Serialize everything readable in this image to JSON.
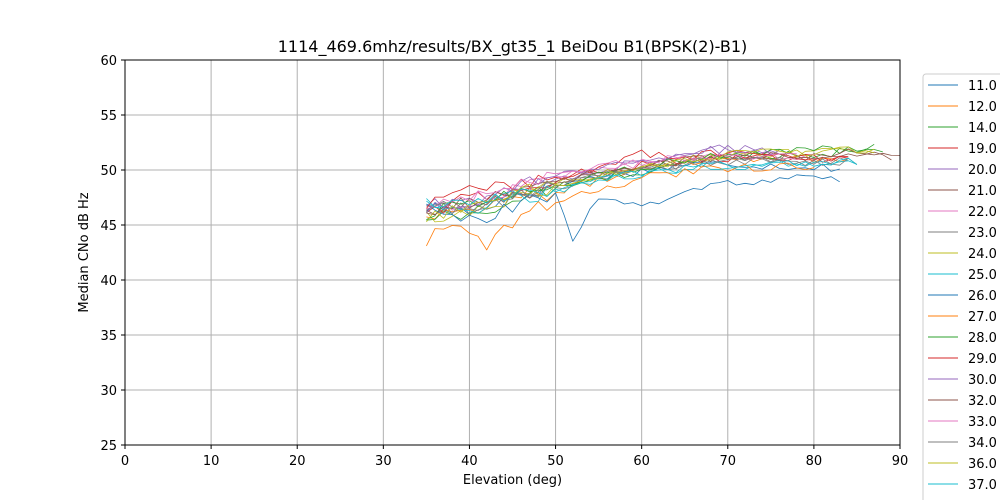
{
  "chart_data": {
    "type": "line",
    "title": "1114_469.6mhz/results/BX_gt35_1 BeiDou B1(BPSK(2)-B1)",
    "xlabel": "Elevation (deg)",
    "ylabel": "Median CNo dB Hz",
    "xlim": [
      0,
      90
    ],
    "ylim": [
      25,
      60
    ],
    "xticks": [
      "0",
      "10",
      "20",
      "30",
      "40",
      "50",
      "60",
      "70",
      "80",
      "90"
    ],
    "yticks": [
      "25",
      "30",
      "35",
      "40",
      "45",
      "50",
      "55",
      "60"
    ],
    "grid": true,
    "legend_position": "right, outside plot (cut off)",
    "series": [
      {
        "name": "11.0",
        "color": "#1f77b4",
        "start": 35,
        "end": 83,
        "values": [
          [
            35,
            46.6
          ],
          [
            40,
            46.2
          ],
          [
            45,
            47.8
          ],
          [
            50,
            48.6
          ],
          [
            55,
            49.4
          ],
          [
            60,
            49.9
          ],
          [
            65,
            50.5
          ],
          [
            70,
            50.6
          ],
          [
            75,
            50.4
          ],
          [
            80,
            50.3
          ],
          [
            83,
            50.2
          ]
        ]
      },
      {
        "name": "12.0",
        "color": "#ff7f0e",
        "start": 35,
        "end": 84,
        "values": [
          [
            35,
            46.0
          ],
          [
            40,
            46.5
          ],
          [
            45,
            47.5
          ],
          [
            50,
            48.0
          ],
          [
            55,
            49.0
          ],
          [
            60,
            50.2
          ],
          [
            65,
            50.8
          ],
          [
            70,
            51.0
          ],
          [
            75,
            51.2
          ],
          [
            80,
            51.0
          ],
          [
            84,
            51.0
          ]
        ]
      },
      {
        "name": "14.0",
        "color": "#2ca02c",
        "start": 35,
        "end": 88,
        "values": [
          [
            35,
            45.6
          ],
          [
            40,
            46.0
          ],
          [
            45,
            47.0
          ],
          [
            50,
            48.4
          ],
          [
            55,
            49.2
          ],
          [
            60,
            49.8
          ],
          [
            65,
            50.6
          ],
          [
            70,
            51.2
          ],
          [
            75,
            51.4
          ],
          [
            80,
            51.5
          ],
          [
            85,
            51.7
          ],
          [
            88,
            51.8
          ]
        ]
      },
      {
        "name": "19.0",
        "color": "#d62728",
        "start": 35,
        "end": 84,
        "values": [
          [
            35,
            46.2
          ],
          [
            40,
            47.4
          ],
          [
            45,
            48.0
          ],
          [
            50,
            48.9
          ],
          [
            55,
            49.8
          ],
          [
            60,
            50.5
          ],
          [
            65,
            51.0
          ],
          [
            70,
            51.1
          ],
          [
            75,
            51.2
          ],
          [
            80,
            51.0
          ],
          [
            84,
            51.0
          ]
        ]
      },
      {
        "name": "20.0",
        "color": "#9467bd",
        "start": 35,
        "end": 76,
        "values": [
          [
            35,
            46.7
          ],
          [
            40,
            47.0
          ],
          [
            45,
            48.0
          ],
          [
            50,
            49.2
          ],
          [
            55,
            50.0
          ],
          [
            60,
            50.8
          ],
          [
            65,
            51.5
          ],
          [
            70,
            52.0
          ],
          [
            76,
            51.8
          ]
        ]
      },
      {
        "name": "21.0",
        "color": "#8c564b",
        "start": 35,
        "end": 89,
        "values": [
          [
            35,
            46.2
          ],
          [
            40,
            46.8
          ],
          [
            45,
            47.6
          ],
          [
            50,
            48.8
          ],
          [
            55,
            49.5
          ],
          [
            60,
            50.3
          ],
          [
            65,
            50.8
          ],
          [
            70,
            51.2
          ],
          [
            75,
            51.3
          ],
          [
            80,
            51.2
          ],
          [
            85,
            51.4
          ],
          [
            89,
            51.2
          ]
        ]
      },
      {
        "name": "22.0",
        "color": "#e377c2",
        "start": 35,
        "end": 80,
        "values": [
          [
            35,
            46.5
          ],
          [
            40,
            47.2
          ],
          [
            45,
            48.2
          ],
          [
            50,
            49.4
          ],
          [
            55,
            50.2
          ],
          [
            60,
            50.6
          ],
          [
            65,
            51.1
          ],
          [
            70,
            51.3
          ],
          [
            75,
            51.4
          ],
          [
            80,
            51.2
          ]
        ]
      },
      {
        "name": "23.0",
        "color": "#7f7f7f",
        "start": 35,
        "end": 84,
        "values": [
          [
            35,
            46.4
          ],
          [
            40,
            46.4
          ],
          [
            45,
            47.4
          ],
          [
            50,
            48.4
          ],
          [
            55,
            49.4
          ],
          [
            60,
            50.0
          ],
          [
            65,
            50.5
          ],
          [
            70,
            50.8
          ],
          [
            75,
            50.8
          ],
          [
            80,
            50.7
          ],
          [
            84,
            50.7
          ]
        ]
      },
      {
        "name": "24.0",
        "color": "#bcbd22",
        "start": 35,
        "end": 87,
        "values": [
          [
            35,
            45.8
          ],
          [
            40,
            46.1
          ],
          [
            45,
            47.6
          ],
          [
            50,
            48.7
          ],
          [
            55,
            49.6
          ],
          [
            60,
            50.3
          ],
          [
            65,
            50.9
          ],
          [
            70,
            51.3
          ],
          [
            75,
            51.5
          ],
          [
            80,
            51.6
          ],
          [
            87,
            51.8
          ]
        ]
      },
      {
        "name": "25.0",
        "color": "#17becf",
        "start": 35,
        "end": 85,
        "values": [
          [
            35,
            46.9
          ],
          [
            40,
            46.4
          ],
          [
            45,
            47.4
          ],
          [
            50,
            48.0
          ],
          [
            55,
            48.9
          ],
          [
            60,
            49.7
          ],
          [
            65,
            50.1
          ],
          [
            70,
            50.4
          ],
          [
            75,
            50.5
          ],
          [
            80,
            50.6
          ],
          [
            85,
            50.7
          ]
        ]
      },
      {
        "name": "26.0",
        "color": "#1f77b4",
        "start": 35,
        "end": 83,
        "values": [
          [
            35,
            46.3
          ],
          [
            38,
            45.8
          ],
          [
            40,
            45.8
          ],
          [
            42,
            45.4
          ],
          [
            45,
            46.8
          ],
          [
            50,
            47.9
          ],
          [
            52,
            43.7
          ],
          [
            55,
            47.4
          ],
          [
            58,
            47.2
          ],
          [
            60,
            46.5
          ],
          [
            65,
            47.9
          ],
          [
            70,
            48.8
          ],
          [
            75,
            48.9
          ],
          [
            80,
            49.4
          ],
          [
            83,
            49.0
          ]
        ]
      },
      {
        "name": "27.0",
        "color": "#ff7f0e",
        "start": 35,
        "end": 80,
        "values": [
          [
            35,
            43.8
          ],
          [
            38,
            44.6
          ],
          [
            40,
            44.0
          ],
          [
            42,
            42.9
          ],
          [
            45,
            45.3
          ],
          [
            48,
            46.5
          ],
          [
            50,
            47.0
          ],
          [
            55,
            48.3
          ],
          [
            60,
            49.3
          ],
          [
            65,
            49.8
          ],
          [
            70,
            50.2
          ],
          [
            75,
            50.3
          ],
          [
            80,
            50.2
          ]
        ]
      },
      {
        "name": "28.0",
        "color": "#2ca02c",
        "start": 35,
        "end": 87,
        "values": [
          [
            35,
            46.1
          ],
          [
            40,
            46.8
          ],
          [
            45,
            47.9
          ],
          [
            50,
            48.6
          ],
          [
            55,
            49.5
          ],
          [
            60,
            50.3
          ],
          [
            65,
            50.9
          ],
          [
            70,
            51.3
          ],
          [
            75,
            51.6
          ],
          [
            80,
            51.8
          ],
          [
            87,
            52.0
          ]
        ]
      },
      {
        "name": "29.0",
        "color": "#d62728",
        "start": 35,
        "end": 84,
        "values": [
          [
            35,
            47.0
          ],
          [
            38,
            48.6
          ],
          [
            40,
            48.0
          ],
          [
            45,
            48.7
          ],
          [
            50,
            49.3
          ],
          [
            55,
            50.2
          ],
          [
            60,
            51.5
          ],
          [
            65,
            51.3
          ],
          [
            70,
            51.5
          ],
          [
            75,
            51.3
          ],
          [
            80,
            51.0
          ],
          [
            84,
            51.0
          ]
        ]
      },
      {
        "name": "30.0",
        "color": "#9467bd",
        "start": 35,
        "end": 76,
        "values": [
          [
            35,
            46.5
          ],
          [
            40,
            47.3
          ],
          [
            45,
            48.4
          ],
          [
            50,
            49.4
          ],
          [
            55,
            50.2
          ],
          [
            60,
            50.8
          ],
          [
            65,
            51.4
          ],
          [
            70,
            52.0
          ],
          [
            76,
            51.6
          ]
        ]
      },
      {
        "name": "32.0",
        "color": "#8c564b",
        "start": 35,
        "end": 90,
        "values": [
          [
            35,
            46.4
          ],
          [
            40,
            47.0
          ],
          [
            45,
            47.8
          ],
          [
            50,
            48.9
          ],
          [
            55,
            49.7
          ],
          [
            60,
            50.5
          ],
          [
            65,
            50.9
          ],
          [
            70,
            51.3
          ],
          [
            75,
            51.3
          ],
          [
            80,
            51.2
          ],
          [
            85,
            51.8
          ],
          [
            90,
            51.3
          ]
        ]
      },
      {
        "name": "33.0",
        "color": "#e377c2",
        "start": 35,
        "end": 78,
        "values": [
          [
            35,
            46.7
          ],
          [
            40,
            47.5
          ],
          [
            45,
            48.5
          ],
          [
            50,
            49.6
          ],
          [
            55,
            50.3
          ],
          [
            60,
            50.8
          ],
          [
            65,
            51.2
          ],
          [
            70,
            51.4
          ],
          [
            78,
            51.3
          ]
        ]
      },
      {
        "name": "34.0",
        "color": "#7f7f7f",
        "start": 35,
        "end": 85,
        "values": [
          [
            35,
            46.5
          ],
          [
            40,
            46.6
          ],
          [
            45,
            47.5
          ],
          [
            50,
            48.5
          ],
          [
            55,
            49.5
          ],
          [
            60,
            50.1
          ],
          [
            65,
            50.6
          ],
          [
            70,
            50.9
          ],
          [
            75,
            50.9
          ],
          [
            80,
            50.8
          ],
          [
            85,
            50.8
          ]
        ]
      },
      {
        "name": "36.0",
        "color": "#bcbd22",
        "start": 35,
        "end": 87,
        "values": [
          [
            35,
            45.3
          ],
          [
            38,
            46.5
          ],
          [
            40,
            46.8
          ],
          [
            45,
            47.7
          ],
          [
            50,
            48.6
          ],
          [
            55,
            49.6
          ],
          [
            60,
            50.4
          ],
          [
            65,
            51.0
          ],
          [
            70,
            51.4
          ],
          [
            75,
            51.6
          ],
          [
            80,
            51.7
          ],
          [
            87,
            51.9
          ]
        ]
      },
      {
        "name": "37.0",
        "color": "#17becf",
        "start": 35,
        "end": 85,
        "values": [
          [
            35,
            47.1
          ],
          [
            40,
            46.6
          ],
          [
            45,
            47.6
          ],
          [
            50,
            48.2
          ],
          [
            55,
            49.0
          ],
          [
            60,
            49.8
          ],
          [
            65,
            50.2
          ],
          [
            70,
            50.5
          ],
          [
            75,
            50.6
          ],
          [
            80,
            50.7
          ],
          [
            85,
            50.8
          ]
        ]
      }
    ]
  }
}
